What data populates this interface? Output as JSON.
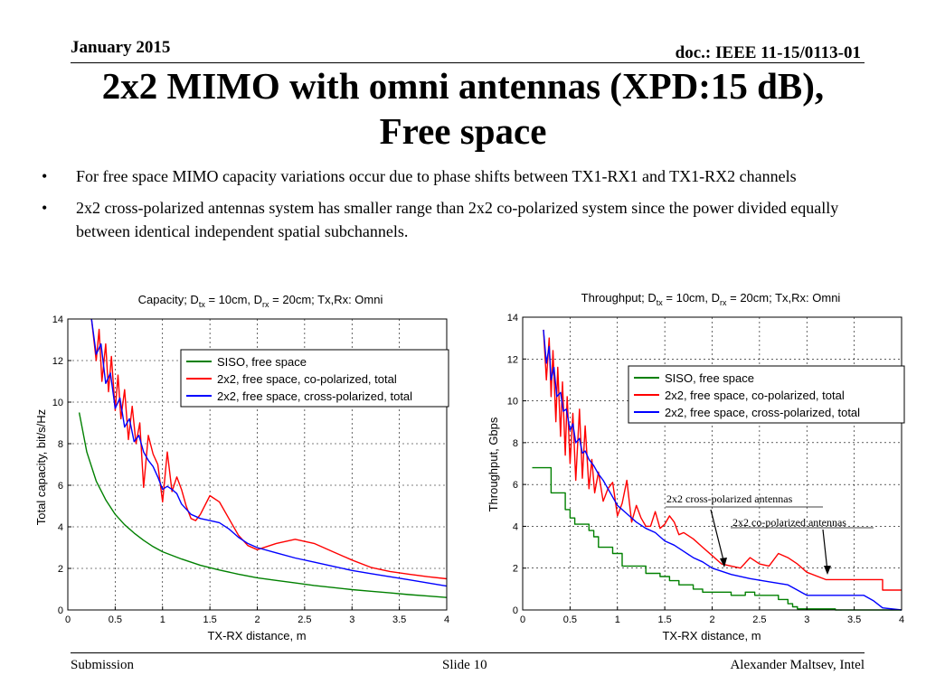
{
  "header": {
    "date": "January 2015",
    "doc": "doc.: IEEE 11-15/0113-01"
  },
  "title_lines": [
    "2x2 MIMO with omni antennas (XPD:15 dB),",
    "Free space"
  ],
  "bullets": [
    "For free space MIMO capacity variations occur due to phase shifts between TX1-RX1 and TX1-RX2 channels",
    "2x2 cross-polarized antennas system has smaller range than 2x2 co-polarized system since the power divided equally between identical independent spatial subchannels."
  ],
  "bullet_symbol": "•",
  "footer": {
    "left": "Submission",
    "center": "Slide 10",
    "right": "Alexander Maltsev, Intel"
  },
  "colors": {
    "siso": "#008000",
    "co_polarized": "#ff0000",
    "cross_polarized": "#0000ff",
    "arrow": "#000000"
  },
  "chart_data": [
    {
      "type": "line",
      "title": "Capacity; D",
      "title_parts": {
        "prefix": "Capacity; D",
        "sub1": "tx",
        "mid": " = 10cm, D",
        "sub2": "rx",
        "suffix": " = 20cm; Tx,Rx: Omni"
      },
      "xlabel": "TX-RX distance, m",
      "ylabel": "Total capacity, bit/s/Hz",
      "xlim": [
        0,
        4
      ],
      "ylim": [
        0,
        14
      ],
      "xticks": [
        0,
        0.5,
        1,
        1.5,
        2,
        2.5,
        3,
        3.5,
        4
      ],
      "xtick_labels": [
        "0",
        "0.5",
        "1",
        "1.5",
        "2",
        "2.5",
        "3",
        "3.5",
        "4"
      ],
      "yticks": [
        0,
        2,
        4,
        6,
        8,
        10,
        12,
        14
      ],
      "ytick_labels": [
        "0",
        "2",
        "4",
        "6",
        "8",
        "10",
        "12",
        "14"
      ],
      "grid": true,
      "legend_position": "top-right",
      "series": [
        {
          "name": "SISO, free space",
          "color": "#008000",
          "x": [
            0.12,
            0.2,
            0.3,
            0.4,
            0.5,
            0.6,
            0.7,
            0.8,
            0.9,
            1.0,
            1.2,
            1.4,
            1.6,
            1.8,
            2.0,
            2.2,
            2.4,
            2.6,
            2.8,
            3.0,
            3.2,
            3.4,
            3.6,
            3.8,
            4.0
          ],
          "y": [
            9.5,
            7.6,
            6.2,
            5.3,
            4.6,
            4.1,
            3.7,
            3.35,
            3.05,
            2.8,
            2.45,
            2.15,
            1.92,
            1.72,
            1.55,
            1.42,
            1.3,
            1.18,
            1.08,
            0.98,
            0.9,
            0.82,
            0.74,
            0.67,
            0.6
          ]
        },
        {
          "name": "2x2, free space, co-polarized, total",
          "color": "#ff0000",
          "x": [
            0.25,
            0.3,
            0.33,
            0.36,
            0.4,
            0.43,
            0.46,
            0.5,
            0.53,
            0.56,
            0.6,
            0.64,
            0.68,
            0.72,
            0.76,
            0.8,
            0.85,
            0.9,
            0.95,
            1.0,
            1.05,
            1.1,
            1.15,
            1.2,
            1.25,
            1.3,
            1.35,
            1.4,
            1.5,
            1.6,
            1.7,
            1.8,
            1.9,
            2.0,
            2.2,
            2.4,
            2.6,
            2.8,
            3.0,
            3.2,
            3.4,
            3.6,
            3.8,
            4.0
          ],
          "y": [
            14,
            12.0,
            13.5,
            11.0,
            12.8,
            10.5,
            12.2,
            9.6,
            11.3,
            9.2,
            10.6,
            8.2,
            9.8,
            8.0,
            9.0,
            5.9,
            8.4,
            7.5,
            7.0,
            5.2,
            7.6,
            5.7,
            6.4,
            5.8,
            5.0,
            4.4,
            4.3,
            4.6,
            5.5,
            5.2,
            4.4,
            3.6,
            3.1,
            2.9,
            3.2,
            3.4,
            3.2,
            2.8,
            2.4,
            2.05,
            1.85,
            1.72,
            1.6,
            1.5
          ]
        },
        {
          "name": "2x2, free space, cross-polarized, total",
          "color": "#0000ff",
          "x": [
            0.25,
            0.3,
            0.35,
            0.4,
            0.45,
            0.5,
            0.55,
            0.6,
            0.65,
            0.7,
            0.75,
            0.8,
            0.85,
            0.9,
            0.95,
            1.0,
            1.05,
            1.1,
            1.15,
            1.2,
            1.3,
            1.4,
            1.5,
            1.6,
            1.7,
            1.8,
            1.9,
            2.0,
            2.2,
            2.4,
            2.6,
            2.8,
            3.0,
            3.2,
            3.4,
            3.6,
            3.8,
            4.0
          ],
          "y": [
            14,
            12.3,
            12.8,
            10.9,
            11.4,
            9.7,
            10.2,
            8.8,
            9.2,
            8.1,
            8.4,
            7.6,
            7.2,
            6.9,
            6.4,
            5.8,
            5.95,
            5.8,
            5.6,
            5.1,
            4.6,
            4.4,
            4.3,
            4.2,
            3.9,
            3.5,
            3.2,
            3.0,
            2.75,
            2.5,
            2.3,
            2.1,
            1.9,
            1.75,
            1.6,
            1.45,
            1.3,
            1.15
          ]
        }
      ]
    },
    {
      "type": "line",
      "title": "Throughput; D",
      "title_parts": {
        "prefix": "Throughput; D",
        "sub1": "tx",
        "mid": " = 10cm, D",
        "sub2": "rx",
        "suffix": " = 20cm; Tx,Rx: Omni"
      },
      "xlabel": "TX-RX distance, m",
      "ylabel": "Throughput, Gbps",
      "xlim": [
        0,
        4
      ],
      "ylim": [
        0,
        14
      ],
      "xticks": [
        0,
        0.5,
        1,
        1.5,
        2,
        2.5,
        3,
        3.5,
        4
      ],
      "xtick_labels": [
        "0",
        "0.5",
        "1",
        "1.5",
        "2",
        "2.5",
        "3",
        "3.5",
        "4"
      ],
      "yticks": [
        0,
        2,
        4,
        6,
        8,
        10,
        12,
        14
      ],
      "ytick_labels": [
        "0",
        "2",
        "4",
        "6",
        "8",
        "10",
        "12",
        "14"
      ],
      "grid": true,
      "legend_position": "top-right",
      "annotations": [
        {
          "text": "2x2 cross-polarized antennas",
          "arrow_to": [
            2.1,
            1.9
          ]
        },
        {
          "text": "2x2 co-polarized antennas",
          "arrow_to": [
            3.25,
            1.4
          ]
        }
      ],
      "series": [
        {
          "name": "SISO, free space",
          "color": "#008000",
          "x": [
            0.1,
            0.3,
            0.3,
            0.45,
            0.45,
            0.5,
            0.5,
            0.55,
            0.55,
            0.7,
            0.7,
            0.75,
            0.75,
            0.8,
            0.8,
            0.95,
            0.95,
            1.05,
            1.05,
            1.3,
            1.3,
            1.45,
            1.45,
            1.55,
            1.55,
            1.65,
            1.65,
            1.8,
            1.8,
            1.9,
            1.9,
            2.2,
            2.2,
            2.35,
            2.35,
            2.45,
            2.45,
            2.7,
            2.7,
            2.8,
            2.8,
            2.85,
            2.85,
            2.9,
            2.9,
            3.3,
            3.3,
            3.5,
            3.5,
            4.0
          ],
          "y": [
            6.8,
            6.8,
            5.6,
            5.6,
            4.8,
            4.8,
            4.4,
            4.4,
            4.1,
            4.1,
            3.8,
            3.8,
            3.5,
            3.5,
            3.0,
            3.0,
            2.7,
            2.7,
            2.1,
            2.1,
            1.75,
            1.75,
            1.6,
            1.6,
            1.4,
            1.4,
            1.2,
            1.2,
            1.0,
            1.0,
            0.85,
            0.85,
            0.7,
            0.7,
            0.85,
            0.85,
            0.7,
            0.7,
            0.5,
            0.5,
            0.3,
            0.3,
            0.15,
            0.15,
            0.05,
            0.05,
            0.0,
            0.0,
            0.0,
            0.0
          ]
        },
        {
          "name": "2x2, free space, co-polarized, total",
          "color": "#ff0000",
          "x": [
            0.22,
            0.25,
            0.28,
            0.3,
            0.32,
            0.35,
            0.37,
            0.4,
            0.42,
            0.45,
            0.47,
            0.5,
            0.53,
            0.56,
            0.6,
            0.63,
            0.66,
            0.7,
            0.73,
            0.76,
            0.8,
            0.85,
            0.9,
            0.95,
            1.0,
            1.05,
            1.1,
            1.15,
            1.2,
            1.25,
            1.3,
            1.35,
            1.4,
            1.45,
            1.5,
            1.55,
            1.6,
            1.65,
            1.7,
            1.8,
            1.9,
            2.0,
            2.1,
            2.2,
            2.3,
            2.4,
            2.5,
            2.6,
            2.7,
            2.8,
            2.9,
            3.0,
            3.2,
            3.4,
            3.6,
            3.8,
            3.8,
            4.0
          ],
          "y": [
            13.4,
            11.0,
            13.0,
            10.2,
            12.4,
            9.0,
            11.6,
            8.3,
            10.9,
            7.4,
            10.2,
            7.0,
            9.4,
            6.2,
            9.6,
            6.3,
            8.8,
            5.8,
            7.2,
            5.6,
            6.6,
            5.2,
            5.8,
            6.1,
            4.5,
            5.1,
            6.2,
            4.2,
            5.0,
            4.4,
            4.0,
            4.0,
            4.7,
            3.9,
            4.1,
            4.5,
            4.2,
            3.6,
            3.7,
            3.4,
            3.0,
            2.6,
            2.2,
            2.1,
            2.0,
            2.5,
            2.2,
            2.1,
            2.7,
            2.5,
            2.2,
            1.8,
            1.45,
            1.45,
            1.45,
            1.45,
            0.95,
            0.95
          ]
        },
        {
          "name": "2x2, free space, cross-polarized, total",
          "color": "#0000ff",
          "x": [
            0.22,
            0.25,
            0.28,
            0.3,
            0.33,
            0.36,
            0.4,
            0.43,
            0.46,
            0.5,
            0.53,
            0.56,
            0.6,
            0.63,
            0.66,
            0.7,
            0.75,
            0.8,
            0.85,
            0.9,
            1.0,
            1.1,
            1.2,
            1.3,
            1.4,
            1.5,
            1.6,
            1.7,
            1.8,
            1.9,
            2.0,
            2.1,
            2.2,
            2.4,
            2.6,
            2.8,
            2.9,
            3.0,
            3.4,
            3.6,
            3.7,
            3.8,
            4.0
          ],
          "y": [
            13.4,
            11.8,
            12.6,
            11.0,
            11.6,
            10.2,
            10.4,
            9.5,
            9.6,
            8.6,
            8.9,
            8.0,
            8.2,
            7.5,
            7.6,
            7.2,
            6.9,
            6.5,
            6.2,
            5.8,
            5.0,
            4.6,
            4.2,
            3.9,
            3.7,
            3.3,
            3.1,
            2.8,
            2.5,
            2.3,
            2.0,
            1.85,
            1.7,
            1.5,
            1.35,
            1.2,
            0.95,
            0.7,
            0.7,
            0.7,
            0.45,
            0.1,
            0.0
          ]
        }
      ]
    }
  ]
}
